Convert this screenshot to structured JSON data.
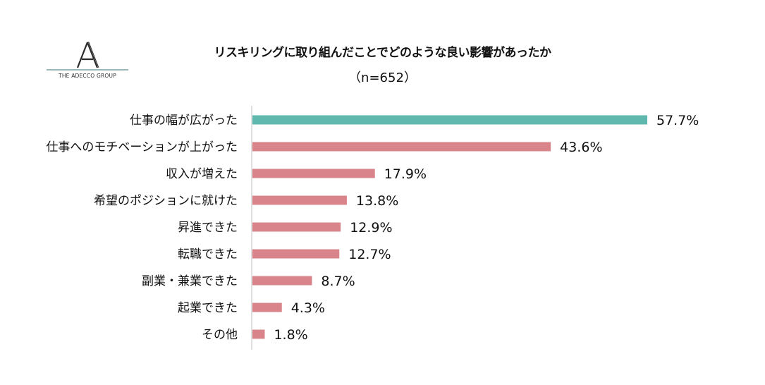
{
  "logo": {
    "text": "THE ADECCO GROUP"
  },
  "chart_data": {
    "type": "bar",
    "orientation": "horizontal",
    "title": "リスキリングに取り組んだことでどのような良い影響があったか",
    "subtitle": "（n=652）",
    "categories": [
      "仕事の幅が広がった",
      "仕事へのモチベーションが上がった",
      "収入が増えた",
      "希望のポジションに就けた",
      "昇進できた",
      "転職できた",
      "副業・兼業できた",
      "起業できた",
      "その他"
    ],
    "values": [
      57.7,
      43.6,
      17.9,
      13.8,
      12.9,
      12.7,
      8.7,
      4.3,
      1.8
    ],
    "value_labels": [
      "57.7%",
      "43.6%",
      "17.9%",
      "13.8%",
      "12.9%",
      "12.7%",
      "8.7%",
      "4.3%",
      "1.8%"
    ],
    "xlim": [
      0,
      57.7
    ],
    "colors": {
      "highlight": "#5eb8ae",
      "default": "#d9848b",
      "axis": "#bfbfbf"
    },
    "highlight_index": 0,
    "grid": false,
    "legend": "none"
  }
}
